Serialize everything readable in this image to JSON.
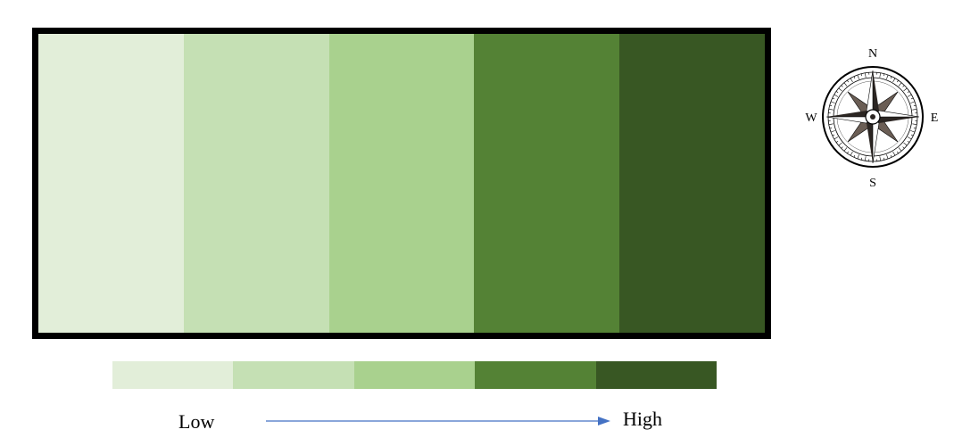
{
  "map": {
    "zone_colors": [
      "#E2EED9",
      "#C5E0B4",
      "#A9D18E",
      "#548235",
      "#385723"
    ]
  },
  "legend": {
    "low_label": "Low",
    "high_label": "High",
    "colors": [
      "#E2EED9",
      "#C5E0B4",
      "#A9D18E",
      "#548235",
      "#385723"
    ],
    "arrow_color": "#4472C4"
  },
  "compass": {
    "north": "N",
    "east": "E",
    "south": "S",
    "west": "W",
    "icon": "compass-rose-icon"
  }
}
